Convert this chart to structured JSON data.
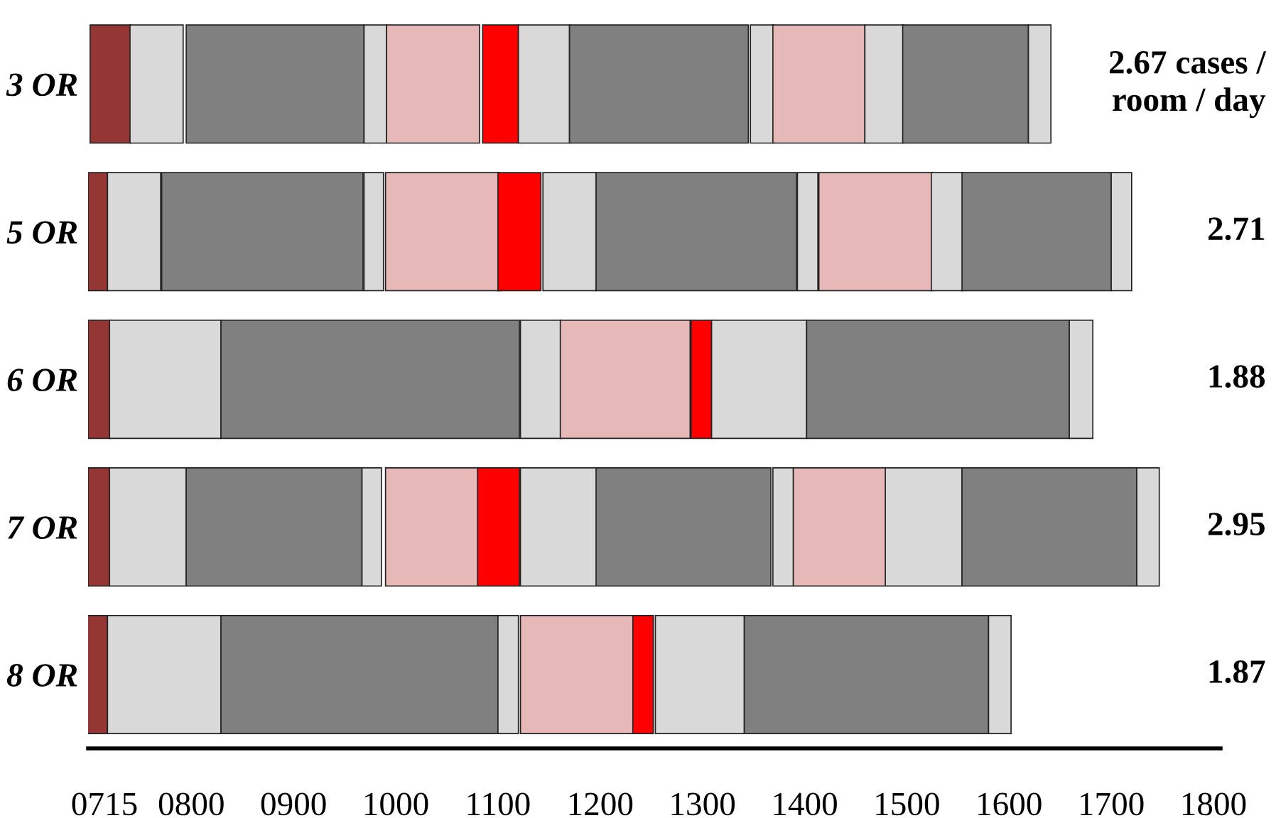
{
  "chart_data": {
    "type": "bar",
    "orientation": "horizontal",
    "categories": [
      "3 OR",
      "5 OR",
      "6 OR",
      "7 OR",
      "8 OR"
    ],
    "series": [
      {
        "color": "#943634",
        "base": [
          701,
          699,
          699,
          699,
          698
        ],
        "values": [
          40,
          19,
          22,
          22,
          20
        ]
      },
      {
        "color": "#d9d9d9",
        "base": [
          740,
          718,
          720,
          720,
          718
        ],
        "values": [
          52,
          52,
          109,
          75,
          111
        ]
      },
      {
        "color": "#808080",
        "base": [
          795,
          771,
          829,
          795,
          829
        ],
        "values": [
          174,
          197,
          292,
          172,
          271
        ]
      },
      {
        "color": "#d9d9d9",
        "base": [
          969,
          969,
          1122,
          967,
          1100
        ],
        "values": [
          22,
          19,
          40,
          19,
          20
        ]
      },
      {
        "color": "#e6b9b8",
        "base": [
          991,
          990,
          1161,
          990,
          1122
        ],
        "values": [
          91,
          112,
          127,
          91,
          111
        ]
      },
      {
        "color": "#ff0000",
        "base": [
          1085,
          1100,
          1289,
          1080,
          1232
        ],
        "values": [
          35,
          42,
          20,
          41,
          20
        ]
      },
      {
        "color": "#d9d9d9",
        "base": [
          1120,
          1144,
          1309,
          1122,
          1254
        ],
        "values": [
          50,
          52,
          93,
          76,
          87
        ]
      },
      {
        "color": "#808080",
        "base": [
          1170,
          1196,
          1402,
          1196,
          1341
        ],
        "values": [
          175,
          196,
          257,
          171,
          239
        ]
      },
      {
        "color": "#d9d9d9",
        "base": [
          1347,
          1393,
          1659,
          1369,
          1580
        ],
        "values": [
          23,
          20,
          23,
          20,
          22
        ]
      },
      {
        "color": "#e6b9b8",
        "base": [
          1369,
          1414,
          null,
          1389,
          null
        ],
        "values": [
          90,
          111,
          null,
          91,
          null
        ]
      },
      {
        "color": "#d9d9d9",
        "base": [
          1459,
          1524,
          null,
          1479,
          null
        ],
        "values": [
          38,
          31,
          null,
          75,
          null
        ]
      },
      {
        "color": "#808080",
        "base": [
          1496,
          1554,
          null,
          1554,
          null
        ],
        "values": [
          123,
          146,
          null,
          171,
          null
        ]
      },
      {
        "color": "#d9d9d9",
        "base": [
          1619,
          1700,
          null,
          1725,
          null
        ],
        "values": [
          22,
          20,
          null,
          22,
          null
        ]
      }
    ],
    "xlim": [
      699,
      1807
    ],
    "xticks": [
      {
        "value": 715,
        "label": "0715"
      },
      {
        "value": 800,
        "label": "0800"
      },
      {
        "value": 900,
        "label": "0900"
      },
      {
        "value": 1000,
        "label": "1000"
      },
      {
        "value": 1100,
        "label": "1100"
      },
      {
        "value": 1200,
        "label": "1200"
      },
      {
        "value": 1300,
        "label": "1300"
      },
      {
        "value": 1400,
        "label": "1400"
      },
      {
        "value": 1500,
        "label": "1500"
      },
      {
        "value": 1600,
        "label": "1600"
      },
      {
        "value": 1700,
        "label": "1700"
      },
      {
        "value": 1800,
        "label": "1800"
      }
    ],
    "grid": false,
    "annotations": [
      "2.67 cases /\nroom / day",
      "2.71",
      "1.88",
      "2.95",
      "1.87"
    ]
  }
}
